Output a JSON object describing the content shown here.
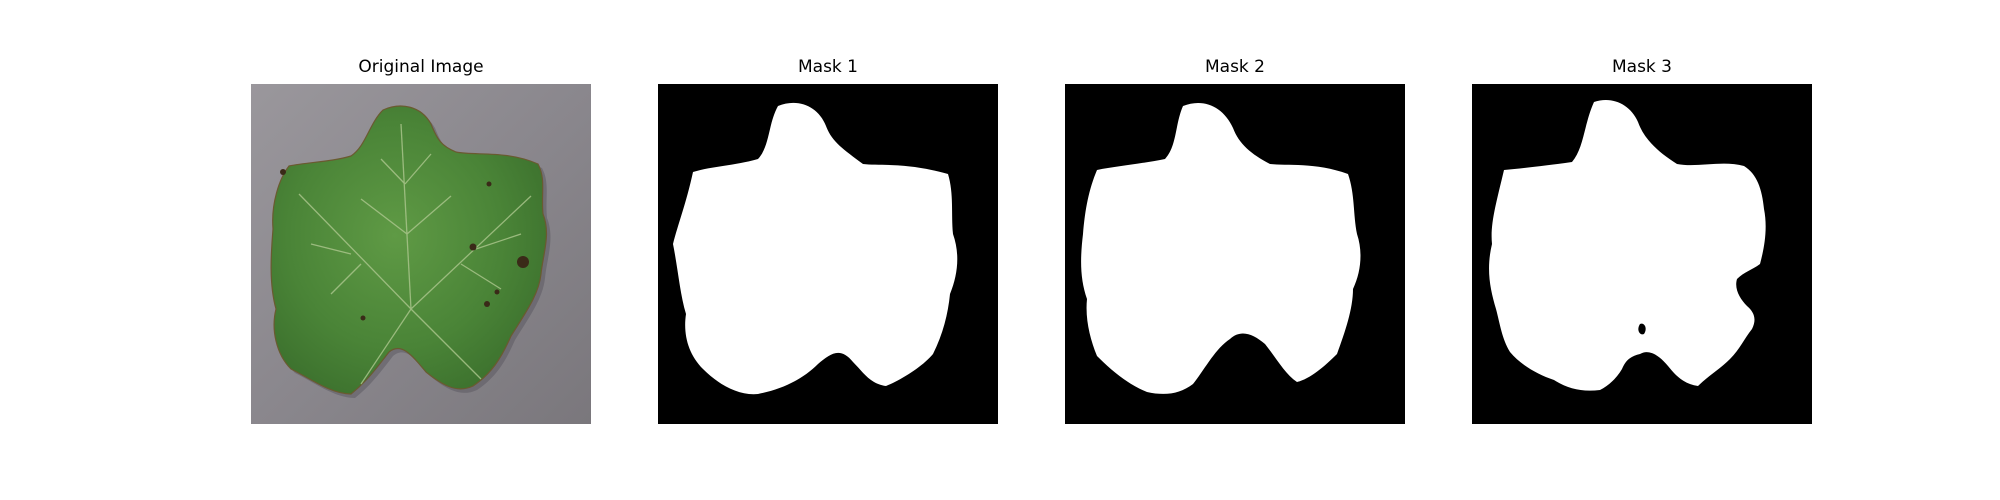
{
  "figure": {
    "panels": [
      {
        "title": "Original Image",
        "kind": "photo",
        "subject": "grape-leaf"
      },
      {
        "title": "Mask 1",
        "kind": "mask"
      },
      {
        "title": "Mask 2",
        "kind": "mask"
      },
      {
        "title": "Mask 3",
        "kind": "mask"
      }
    ],
    "colors": {
      "background": "#ffffff",
      "mask_background": "#000000",
      "mask_foreground": "#ffffff",
      "leaf": "#4f8a3c",
      "leaf_dark": "#2f5f27",
      "table_surface": "#8e8c92"
    }
  }
}
